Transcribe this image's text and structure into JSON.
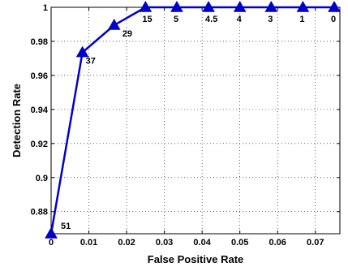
{
  "chart_data": {
    "type": "line",
    "title": "",
    "xlabel": "False Positive Rate",
    "ylabel": "Detection Rate",
    "xlim": [
      0,
      0.0765
    ],
    "ylim": [
      0.867,
      1.0
    ],
    "x_ticks": [
      0,
      0.01,
      0.02,
      0.03,
      0.04,
      0.05,
      0.06,
      0.07
    ],
    "x_tick_labels": [
      "0",
      "0.01",
      "0.02",
      "0.03",
      "0.04",
      "0.05",
      "0.06",
      "0.07"
    ],
    "y_ticks": [
      0.88,
      0.9,
      0.92,
      0.94,
      0.96,
      0.98,
      1.0
    ],
    "y_tick_labels": [
      "0.88",
      "0.9",
      "0.92",
      "0.94",
      "0.96",
      "0.98",
      "1"
    ],
    "grid": true,
    "series": [
      {
        "color": "#0000cc",
        "marker": "triangle",
        "points": [
          {
            "x": 0.0,
            "y": 0.867,
            "label": "51"
          },
          {
            "x": 0.0083,
            "y": 0.9735,
            "label": "37"
          },
          {
            "x": 0.0167,
            "y": 0.9895,
            "label": "29"
          },
          {
            "x": 0.025,
            "y": 1.0,
            "label": "15"
          },
          {
            "x": 0.0333,
            "y": 1.0,
            "label": "5"
          },
          {
            "x": 0.0417,
            "y": 1.0,
            "label": "4.5"
          },
          {
            "x": 0.05,
            "y": 1.0,
            "label": "4"
          },
          {
            "x": 0.0583,
            "y": 1.0,
            "label": "3"
          },
          {
            "x": 0.0667,
            "y": 1.0,
            "label": "1"
          },
          {
            "x": 0.075,
            "y": 1.0,
            "label": "0"
          }
        ]
      }
    ]
  }
}
